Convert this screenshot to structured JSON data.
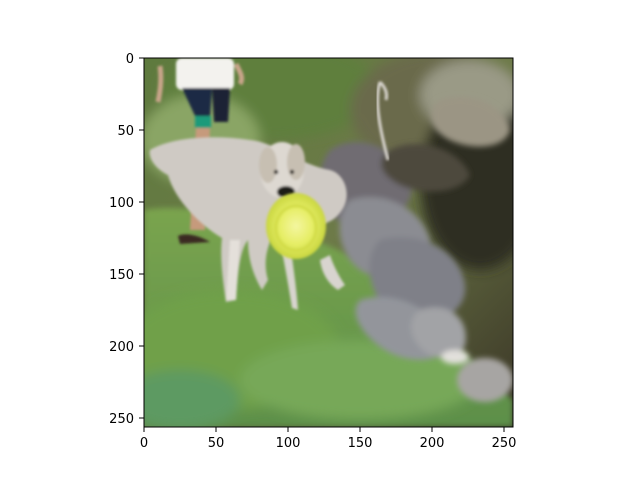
{
  "figure": {
    "type": "image-plot",
    "subject": "dog-with-frisbee",
    "x_ticks": [
      "0",
      "50",
      "100",
      "150",
      "200",
      "250"
    ],
    "y_ticks": [
      "0",
      "50",
      "100",
      "150",
      "200",
      "250"
    ],
    "x_range": [
      0,
      256
    ],
    "y_range": [
      0,
      256
    ],
    "colors": {
      "grass": "#6f9a4a",
      "dog": "#cfcac4",
      "frisbee": "#e6ee66",
      "rocks": "#8b8c92",
      "shadow": "#2e2e24"
    }
  }
}
